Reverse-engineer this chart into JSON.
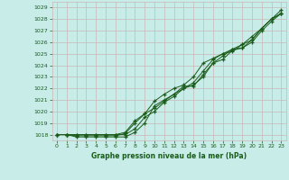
{
  "title": "Graphe pression niveau de la mer (hPa)",
  "xlim": [
    -0.5,
    23.5
  ],
  "ylim": [
    1017.5,
    1029.5
  ],
  "yticks": [
    1018,
    1019,
    1020,
    1021,
    1022,
    1023,
    1024,
    1025,
    1026,
    1027,
    1028,
    1029
  ],
  "xticks": [
    0,
    1,
    2,
    3,
    4,
    5,
    6,
    7,
    8,
    9,
    10,
    11,
    12,
    13,
    14,
    15,
    16,
    17,
    18,
    19,
    20,
    21,
    22,
    23
  ],
  "bg_color": "#c8ece8",
  "grid_color": "#c8b8b8",
  "line_color": "#1a5c1a",
  "line1": [
    1018.0,
    1018.0,
    1017.8,
    1017.8,
    1017.8,
    1017.8,
    1017.8,
    1017.8,
    1018.2,
    1019.0,
    1020.5,
    1021.0,
    1021.5,
    1022.0,
    1022.3,
    1023.0,
    1024.2,
    1024.5,
    1025.3,
    1025.5,
    1026.0,
    1027.0,
    1027.8,
    1028.5
  ],
  "line2": [
    1018.0,
    1018.0,
    1017.9,
    1017.9,
    1017.9,
    1017.9,
    1017.9,
    1018.1,
    1019.0,
    1019.8,
    1020.3,
    1020.9,
    1021.5,
    1022.2,
    1022.2,
    1023.2,
    1024.2,
    1024.8,
    1025.4,
    1025.5,
    1026.2,
    1027.2,
    1028.0,
    1028.5
  ],
  "line3": [
    1018.0,
    1018.0,
    1018.0,
    1018.0,
    1018.0,
    1018.0,
    1018.0,
    1018.2,
    1019.2,
    1019.8,
    1020.9,
    1021.5,
    1022.0,
    1022.3,
    1023.0,
    1024.2,
    1024.6,
    1025.0,
    1025.2,
    1025.8,
    1026.2,
    1027.2,
    1028.0,
    1028.8
  ],
  "line4": [
    1018.0,
    1018.0,
    1018.0,
    1018.0,
    1018.0,
    1018.0,
    1018.0,
    1018.0,
    1018.5,
    1019.5,
    1020.0,
    1020.8,
    1021.3,
    1022.0,
    1022.5,
    1023.5,
    1024.5,
    1025.0,
    1025.4,
    1025.8,
    1026.5,
    1027.2,
    1028.0,
    1028.5
  ]
}
